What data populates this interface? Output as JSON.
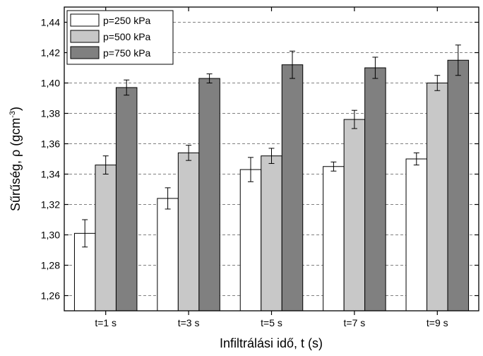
{
  "chart_data": {
    "type": "bar",
    "categories": [
      "t=1 s",
      "t=3 s",
      "t=5 s",
      "t=7 s",
      "t=9 s"
    ],
    "series": [
      {
        "name": "p=250 kPa",
        "color": "#ffffff",
        "values": [
          1.301,
          1.324,
          1.343,
          1.345,
          1.35
        ],
        "errors": [
          0.009,
          0.007,
          0.008,
          0.003,
          0.004
        ]
      },
      {
        "name": "p=500 kPa",
        "color": "#c8c8c8",
        "values": [
          1.346,
          1.354,
          1.352,
          1.376,
          1.4
        ],
        "errors": [
          0.006,
          0.005,
          0.005,
          0.006,
          0.005
        ]
      },
      {
        "name": "p=750 kPa",
        "color": "#808080",
        "values": [
          1.397,
          1.403,
          1.412,
          1.41,
          1.415
        ],
        "errors": [
          0.005,
          0.003,
          0.009,
          0.007,
          0.01
        ]
      }
    ],
    "y_ticks": [
      "1,26",
      "1,28",
      "1,30",
      "1,32",
      "1,34",
      "1,36",
      "1,38",
      "1,40",
      "1,42",
      "1,44"
    ],
    "ylim": [
      1.25,
      1.45
    ],
    "xlabel": "Infiltrálási idő, t (s)",
    "ylabel_main": "Sűrűség, ρ (gcm",
    "ylabel_sup": "-3",
    "ylabel_end": ")",
    "grid": "horizontal-dashed",
    "legend_position": "top-left"
  }
}
